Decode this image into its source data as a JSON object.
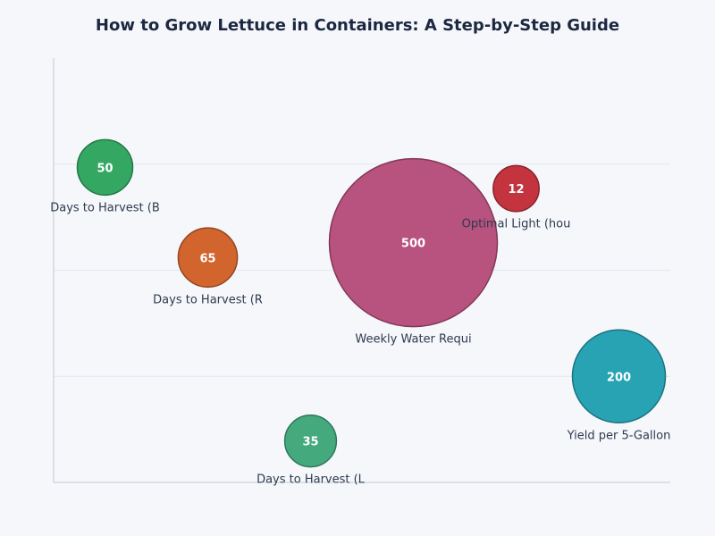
{
  "chart_data": {
    "type": "bubble",
    "title": "How to Grow Lettuce in Containers: A Step-by-Step Guide",
    "xlabel": "",
    "ylabel": "",
    "xlim": [
      -0.5,
      5.5
    ],
    "ylim": [
      0,
      4
    ],
    "grid": true,
    "legend": "none",
    "points": [
      {
        "label": "Days to Harvest (B",
        "value": 50,
        "x": 0,
        "y": 2.97,
        "color": "#34a863"
      },
      {
        "label": "Days to Harvest (R",
        "value": 65,
        "x": 1,
        "y": 2.12,
        "color": "#d2642e"
      },
      {
        "label": "Days to Harvest (L",
        "value": 35,
        "x": 2,
        "y": 0.39,
        "color": "#45a97e"
      },
      {
        "label": "Weekly Water Requi",
        "value": 500,
        "x": 3,
        "y": 2.26,
        "color": "#b8527f"
      },
      {
        "label": "Optimal Light (hou",
        "value": 12,
        "x": 4,
        "y": 2.77,
        "color": "#c3343e"
      },
      {
        "label": "Yield per 5-Gallon",
        "value": 200,
        "x": 5,
        "y": 1.0,
        "color": "#27a3b3"
      }
    ]
  }
}
